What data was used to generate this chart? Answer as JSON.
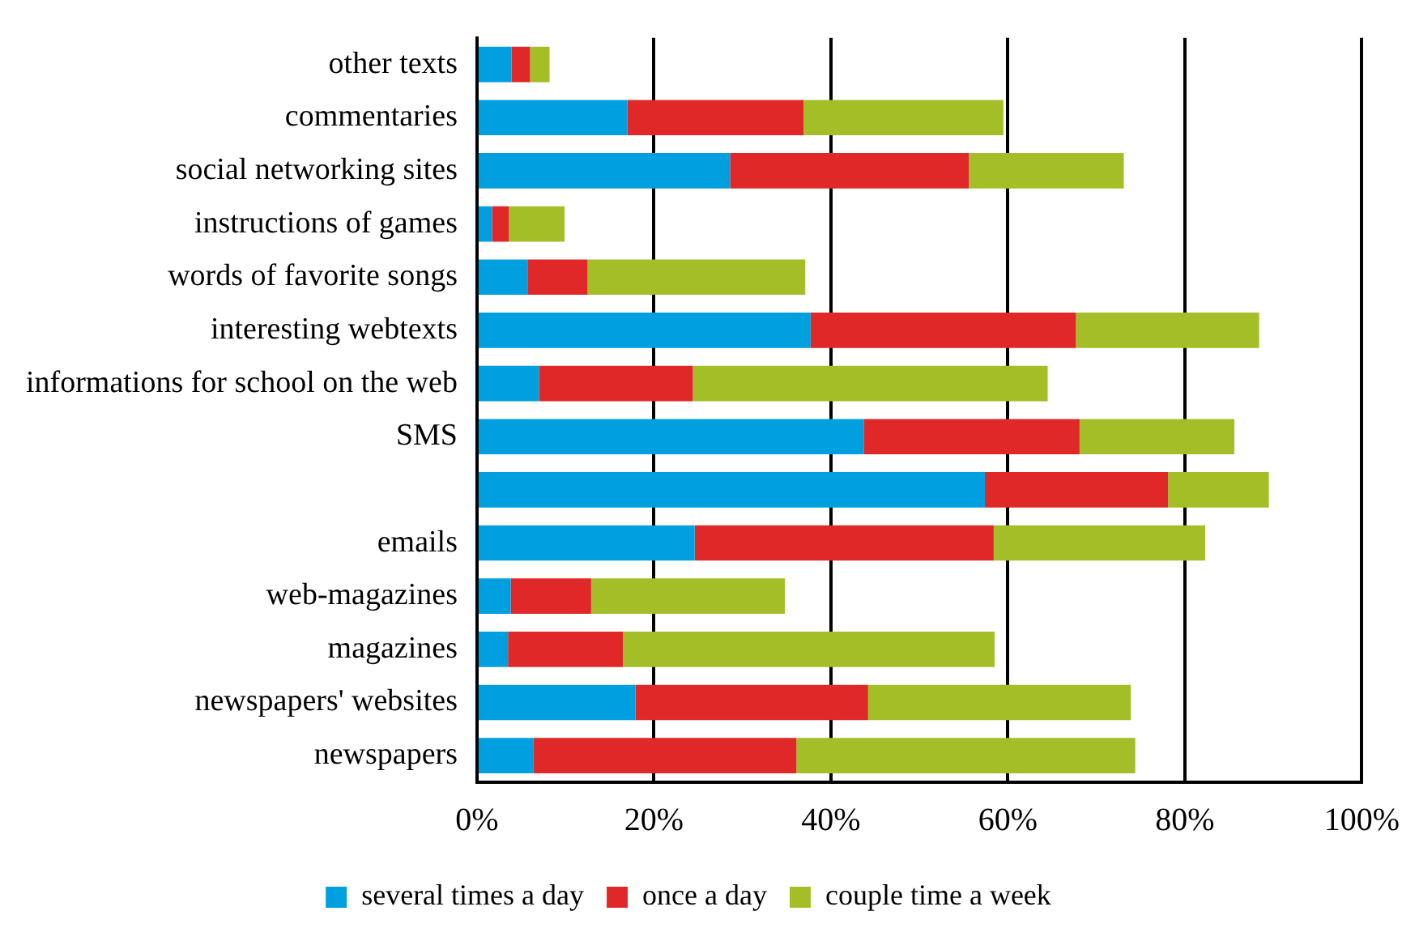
{
  "chart_data": {
    "type": "bar",
    "orientation": "horizontal",
    "stacked": true,
    "categories": [
      "other texts",
      "commentaries",
      "social networking sites",
      "instructions of games",
      "words of favorite songs",
      "interesting webtexts",
      "informations for school on the web",
      "SMS",
      null,
      "emails",
      "web-magazines",
      "magazines",
      "newspapers' websites",
      "newspapers"
    ],
    "series": [
      {
        "name": "several times a day",
        "color": "#009fdf",
        "values": [
          3.9,
          17.0,
          28.6,
          1.7,
          5.7,
          37.7,
          7.0,
          43.7,
          57.4,
          24.6,
          3.8,
          3.5,
          17.9,
          6.4
        ]
      },
      {
        "name": "once a day",
        "color": "#e02828",
        "values": [
          2.1,
          19.9,
          27.0,
          1.9,
          6.8,
          30.0,
          17.4,
          24.4,
          20.7,
          33.8,
          9.1,
          13.0,
          26.3,
          29.7
        ]
      },
      {
        "name": "couple time a week",
        "color": "#a3be27",
        "values": [
          2.2,
          22.6,
          17.5,
          6.3,
          24.6,
          20.7,
          40.1,
          17.5,
          11.4,
          23.9,
          21.9,
          42.0,
          29.7,
          38.3
        ]
      }
    ],
    "xlim": [
      0,
      100
    ],
    "xticks": [
      {
        "value": 0,
        "label": "0%"
      },
      {
        "value": 20,
        "label": "20%"
      },
      {
        "value": 40,
        "label": "40%"
      },
      {
        "value": 60,
        "label": "60%"
      },
      {
        "value": 80,
        "label": "80%"
      },
      {
        "value": 100,
        "label": "100%"
      }
    ],
    "grid": "x",
    "legend": "bottom"
  }
}
